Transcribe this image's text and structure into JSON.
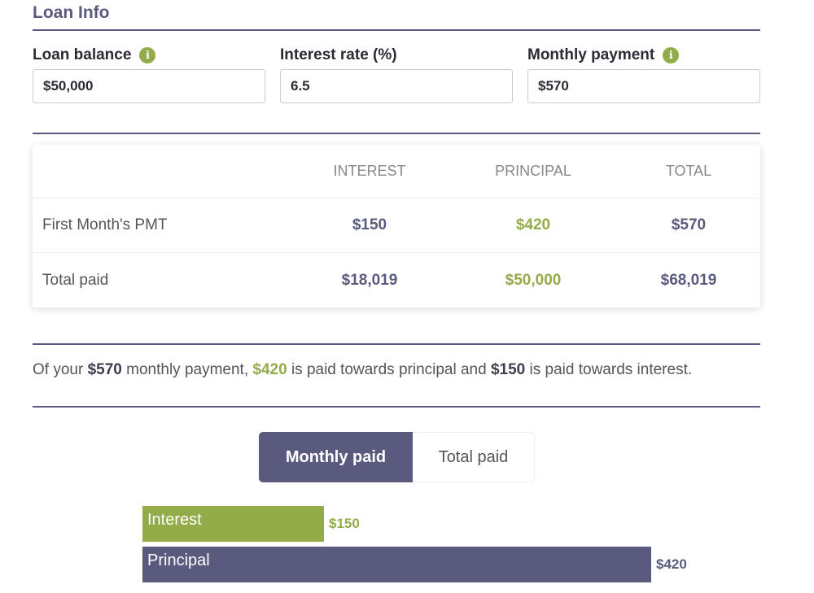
{
  "section_title": "Loan Info",
  "fields": [
    {
      "label": "Loan balance",
      "value": "$50,000",
      "info": true
    },
    {
      "label": "Interest rate (%)",
      "value": "6.5",
      "info": false
    },
    {
      "label": "Monthly payment",
      "value": "$570",
      "info": true
    }
  ],
  "table": {
    "headers": [
      "",
      "INTEREST",
      "PRINCIPAL",
      "TOTAL"
    ],
    "rows": [
      {
        "label": "First Month's PMT",
        "interest": "$150",
        "principal": "$420",
        "total": "$570"
      },
      {
        "label": "Total paid",
        "interest": "$18,019",
        "principal": "$50,000",
        "total": "$68,019"
      }
    ]
  },
  "summary": {
    "p1": "Of your ",
    "monthly": "$570",
    "p2": " monthly payment, ",
    "principal": "$420",
    "p3": " is paid towards principal and ",
    "interest": "$150",
    "p4": " is paid towards interest."
  },
  "toggle": {
    "options": [
      "Monthly paid",
      "Total paid"
    ],
    "selected": "Monthly paid"
  },
  "colors": {
    "primary": "#5a5a7e",
    "accent": "#94ab4a"
  },
  "chart_data": {
    "type": "bar",
    "orientation": "horizontal",
    "categories": [
      "Interest",
      "Principal"
    ],
    "values": [
      150,
      420
    ],
    "value_labels": [
      "$150",
      "$420"
    ],
    "colors": [
      "#94ab4a",
      "#5a5a7e"
    ]
  }
}
